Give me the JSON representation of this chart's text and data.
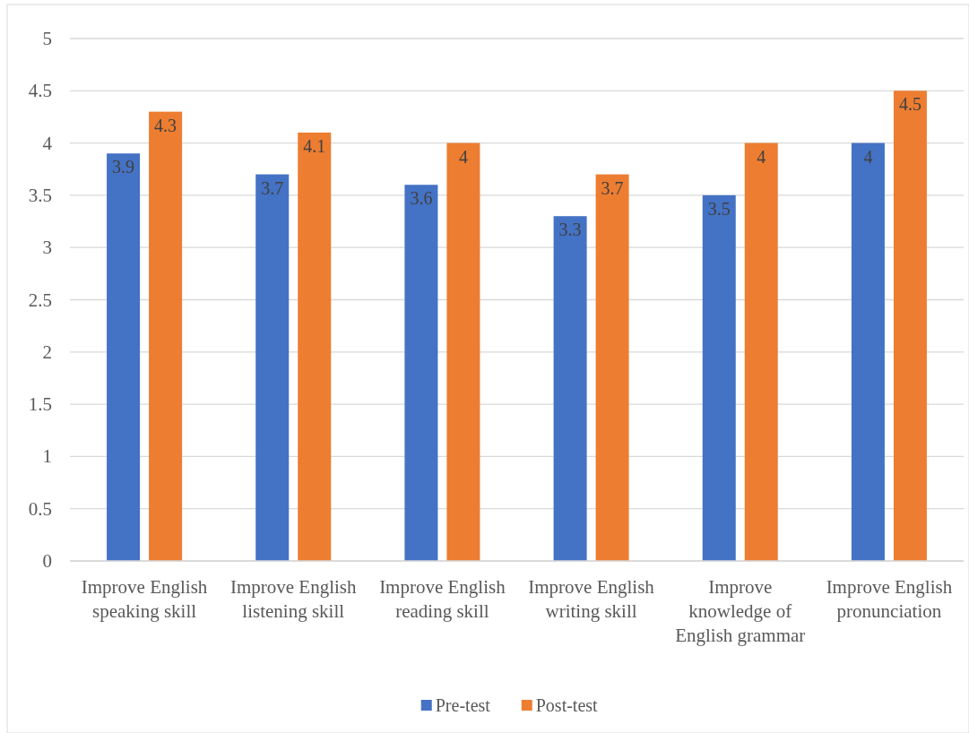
{
  "chart_data": {
    "type": "bar",
    "categories": [
      "Improve English speaking skill",
      "Improve English listening skill",
      "Improve English reading skill",
      "Improve English writing skill",
      "Improve knowledge of English grammar",
      "Improve English pronunciation"
    ],
    "series": [
      {
        "name": "Pre-test",
        "color": "#4472c4",
        "values": [
          3.9,
          3.7,
          3.6,
          3.3,
          3.5,
          4
        ]
      },
      {
        "name": "Post-test",
        "color": "#ed7d31",
        "values": [
          4.3,
          4.1,
          4,
          3.7,
          4,
          4.5
        ]
      }
    ],
    "ylim": [
      0,
      5
    ],
    "yticks": [
      0,
      0.5,
      1,
      1.5,
      2,
      2.5,
      3,
      3.5,
      4,
      4.5,
      5
    ],
    "grid": "y",
    "legend": "bottom",
    "data_labels": true
  }
}
